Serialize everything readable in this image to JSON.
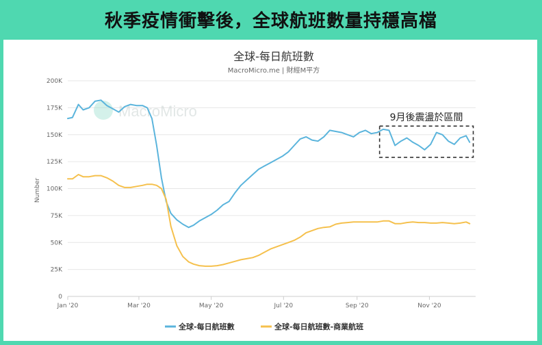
{
  "banner": {
    "title": "秋季疫情衝擊後，全球航班數量持穩高檔"
  },
  "chart_data": {
    "type": "line",
    "title": "全球-每日航班數",
    "subtitle": "MacroMicro.me | 財經M平方",
    "watermark": "MacroMicro",
    "ylabel": "Number",
    "ylim": [
      0,
      200000
    ],
    "y_ticks": [
      0,
      25000,
      50000,
      75000,
      100000,
      125000,
      150000,
      175000,
      200000
    ],
    "y_tick_labels": [
      "0",
      "25K",
      "50K",
      "75K",
      "100K",
      "125K",
      "150K",
      "175K",
      "200K"
    ],
    "x_ticks": [
      "2020-01-01",
      "2020-03-01",
      "2020-05-01",
      "2020-07-01",
      "2020-09-01",
      "2020-11-01"
    ],
    "x_tick_labels": [
      "Jan '20",
      "Mar '20",
      "May '20",
      "Jul '20",
      "Sep '20",
      "Nov '20"
    ],
    "xlim": [
      "2020-01-01",
      "2020-12-10"
    ],
    "grid": "horizontal",
    "legend": "bottom",
    "colors": {
      "series_total": "#5ab4dc",
      "series_commercial": "#f5c04c",
      "grid": "#e6e6e6",
      "axis_text": "#666666"
    },
    "series": [
      {
        "name": "全球-每日航班數",
        "x": [
          "2020-01-01",
          "2020-01-05",
          "2020-01-10",
          "2020-01-14",
          "2020-01-19",
          "2020-01-24",
          "2020-01-29",
          "2020-02-03",
          "2020-02-08",
          "2020-02-13",
          "2020-02-18",
          "2020-02-23",
          "2020-02-28",
          "2020-03-04",
          "2020-03-08",
          "2020-03-12",
          "2020-03-16",
          "2020-03-20",
          "2020-03-24",
          "2020-03-28",
          "2020-04-02",
          "2020-04-07",
          "2020-04-12",
          "2020-04-16",
          "2020-04-21",
          "2020-04-26",
          "2020-05-01",
          "2020-05-06",
          "2020-05-11",
          "2020-05-16",
          "2020-05-21",
          "2020-05-26",
          "2020-05-31",
          "2020-06-05",
          "2020-06-10",
          "2020-06-15",
          "2020-06-20",
          "2020-06-25",
          "2020-06-30",
          "2020-07-05",
          "2020-07-10",
          "2020-07-15",
          "2020-07-20",
          "2020-07-25",
          "2020-07-30",
          "2020-08-04",
          "2020-08-09",
          "2020-08-14",
          "2020-08-19",
          "2020-08-24",
          "2020-08-29",
          "2020-09-03",
          "2020-09-08",
          "2020-09-13",
          "2020-09-18",
          "2020-09-23",
          "2020-09-28",
          "2020-10-03",
          "2020-10-08",
          "2020-10-13",
          "2020-10-18",
          "2020-10-23",
          "2020-10-28",
          "2020-11-02",
          "2020-11-07",
          "2020-11-12",
          "2020-11-17",
          "2020-11-22",
          "2020-11-27",
          "2020-12-02",
          "2020-12-05"
        ],
        "values": [
          165000,
          166000,
          178000,
          173000,
          175000,
          181000,
          182000,
          177000,
          174000,
          171000,
          176000,
          178000,
          177000,
          177000,
          175000,
          165000,
          140000,
          110000,
          88000,
          77000,
          71000,
          67000,
          64000,
          66000,
          70000,
          73000,
          76000,
          80000,
          85000,
          88000,
          96000,
          103000,
          108000,
          113000,
          118000,
          121000,
          124000,
          127000,
          130000,
          134000,
          140000,
          146000,
          148000,
          145000,
          144000,
          148000,
          154000,
          153000,
          152000,
          150000,
          148000,
          152000,
          154000,
          151000,
          152000,
          155000,
          154000,
          140000,
          144000,
          147000,
          143000,
          140000,
          136000,
          141000,
          152000,
          150000,
          144000,
          141000,
          147000,
          149000,
          143000
        ]
      },
      {
        "name": "全球-每日航班數-商業航班",
        "x": [
          "2020-01-01",
          "2020-01-05",
          "2020-01-10",
          "2020-01-14",
          "2020-01-19",
          "2020-01-24",
          "2020-01-29",
          "2020-02-03",
          "2020-02-08",
          "2020-02-13",
          "2020-02-18",
          "2020-02-23",
          "2020-02-28",
          "2020-03-04",
          "2020-03-08",
          "2020-03-12",
          "2020-03-16",
          "2020-03-20",
          "2020-03-24",
          "2020-03-28",
          "2020-04-02",
          "2020-04-07",
          "2020-04-12",
          "2020-04-16",
          "2020-04-21",
          "2020-04-26",
          "2020-05-01",
          "2020-05-06",
          "2020-05-11",
          "2020-05-16",
          "2020-05-21",
          "2020-05-26",
          "2020-05-31",
          "2020-06-05",
          "2020-06-10",
          "2020-06-15",
          "2020-06-20",
          "2020-06-25",
          "2020-06-30",
          "2020-07-05",
          "2020-07-10",
          "2020-07-15",
          "2020-07-20",
          "2020-07-25",
          "2020-07-30",
          "2020-08-04",
          "2020-08-09",
          "2020-08-14",
          "2020-08-19",
          "2020-08-24",
          "2020-08-29",
          "2020-09-03",
          "2020-09-08",
          "2020-09-13",
          "2020-09-18",
          "2020-09-23",
          "2020-09-28",
          "2020-10-03",
          "2020-10-08",
          "2020-10-13",
          "2020-10-18",
          "2020-10-23",
          "2020-10-28",
          "2020-11-02",
          "2020-11-07",
          "2020-11-12",
          "2020-11-17",
          "2020-11-22",
          "2020-11-27",
          "2020-12-02",
          "2020-12-05"
        ],
        "values": [
          109000,
          109000,
          113000,
          111000,
          111000,
          112000,
          112000,
          110000,
          107000,
          103000,
          101000,
          101000,
          102000,
          103000,
          104000,
          104000,
          103000,
          100000,
          90000,
          65000,
          47000,
          37000,
          32000,
          30000,
          28500,
          28000,
          28000,
          28500,
          29500,
          31000,
          32500,
          34000,
          35000,
          36000,
          38000,
          41000,
          44000,
          46000,
          48000,
          50000,
          52000,
          55000,
          59000,
          61000,
          63000,
          64000,
          64500,
          67000,
          68000,
          68500,
          69000,
          69000,
          69000,
          69000,
          69000,
          70000,
          70000,
          67500,
          67500,
          68500,
          69000,
          68500,
          68500,
          68000,
          68000,
          68500,
          68000,
          67500,
          68000,
          69000,
          67500
        ]
      }
    ],
    "annotation": {
      "text": "9月後震盪於區間",
      "x_range": [
        "2020-09-20",
        "2020-12-08"
      ],
      "y_range": [
        129000,
        158000
      ]
    }
  }
}
